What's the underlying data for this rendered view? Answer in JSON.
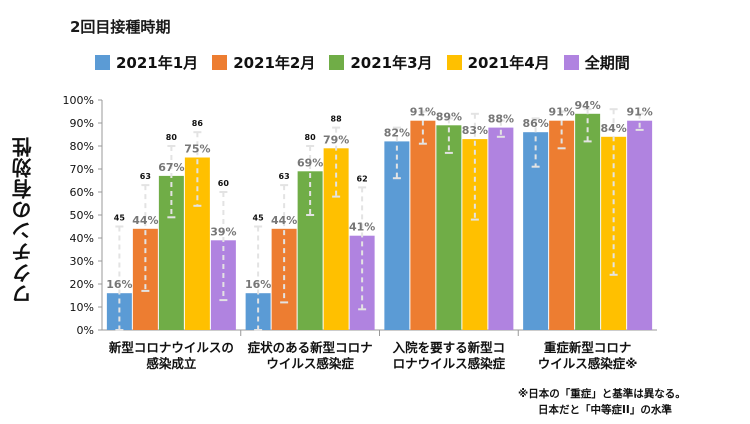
{
  "title": "2回目接種時期",
  "colors": {
    "jan": "#5b9bd5",
    "feb": "#ed7d31",
    "mar": "#70ad47",
    "apr": "#ffc000",
    "all": "#b083e0"
  },
  "note": {
    "line1": "※日本の「重症」と基準は異なる。",
    "line2": "日本だと「中等症II」の水準"
  },
  "chart_data": {
    "type": "bar",
    "ylabel": "ワクチンの有効性",
    "ylim": [
      0,
      100
    ],
    "yticks": [
      "0%",
      "10%",
      "20%",
      "30%",
      "40%",
      "50%",
      "60%",
      "70%",
      "80%",
      "90%",
      "100%"
    ],
    "categories": [
      {
        "line1": "新型コロナウイルスの",
        "line2": "感染成立"
      },
      {
        "line1": "症状のある新型コロナ",
        "line2": "ウイルス感染症"
      },
      {
        "line1": "入院を要する新型コ",
        "line2": "ロナウイルス感染症"
      },
      {
        "line1": "重症新型コロナ",
        "line2": "ウイルス感染症※"
      }
    ],
    "series": [
      {
        "name": "2021年1月",
        "color_key": "jan",
        "values": [
          16,
          16,
          82,
          86
        ],
        "labels": [
          "16%",
          "16%",
          "82%",
          "86%"
        ],
        "upper": [
          45,
          45,
          88,
          92
        ],
        "upper_labels": [
          "45",
          "45",
          "",
          ""
        ],
        "lower": [
          0,
          0,
          66,
          71
        ]
      },
      {
        "name": "2021年2月",
        "color_key": "feb",
        "values": [
          44,
          44,
          91,
          91
        ],
        "labels": [
          "44%",
          "44%",
          "91%",
          "91%"
        ],
        "upper": [
          63,
          63,
          95,
          95
        ],
        "upper_labels": [
          "63",
          "63",
          "",
          ""
        ],
        "lower": [
          17,
          12,
          81,
          79
        ]
      },
      {
        "name": "2021年3月",
        "color_key": "mar",
        "values": [
          67,
          69,
          89,
          94
        ],
        "labels": [
          "67%",
          "69%",
          "89%",
          "94%"
        ],
        "upper": [
          80,
          80,
          92,
          96
        ],
        "upper_labels": [
          "80",
          "80",
          "",
          ""
        ],
        "lower": [
          49,
          50,
          77,
          82
        ]
      },
      {
        "name": "2021年4月",
        "color_key": "apr",
        "values": [
          75,
          79,
          83,
          84
        ],
        "labels": [
          "75%",
          "79%",
          "83%",
          "84%"
        ],
        "upper": [
          86,
          88,
          94,
          96
        ],
        "upper_labels": [
          "86",
          "88",
          "",
          ""
        ],
        "lower": [
          54,
          58,
          48,
          24
        ]
      },
      {
        "name": "全期間",
        "color_key": "all",
        "values": [
          39,
          41,
          88,
          91
        ],
        "labels": [
          "39%",
          "41%",
          "88%",
          "91%"
        ],
        "upper": [
          60,
          62,
          91,
          94
        ],
        "upper_labels": [
          "60",
          "62",
          "",
          ""
        ],
        "lower": [
          13,
          9,
          84,
          87
        ]
      }
    ]
  }
}
